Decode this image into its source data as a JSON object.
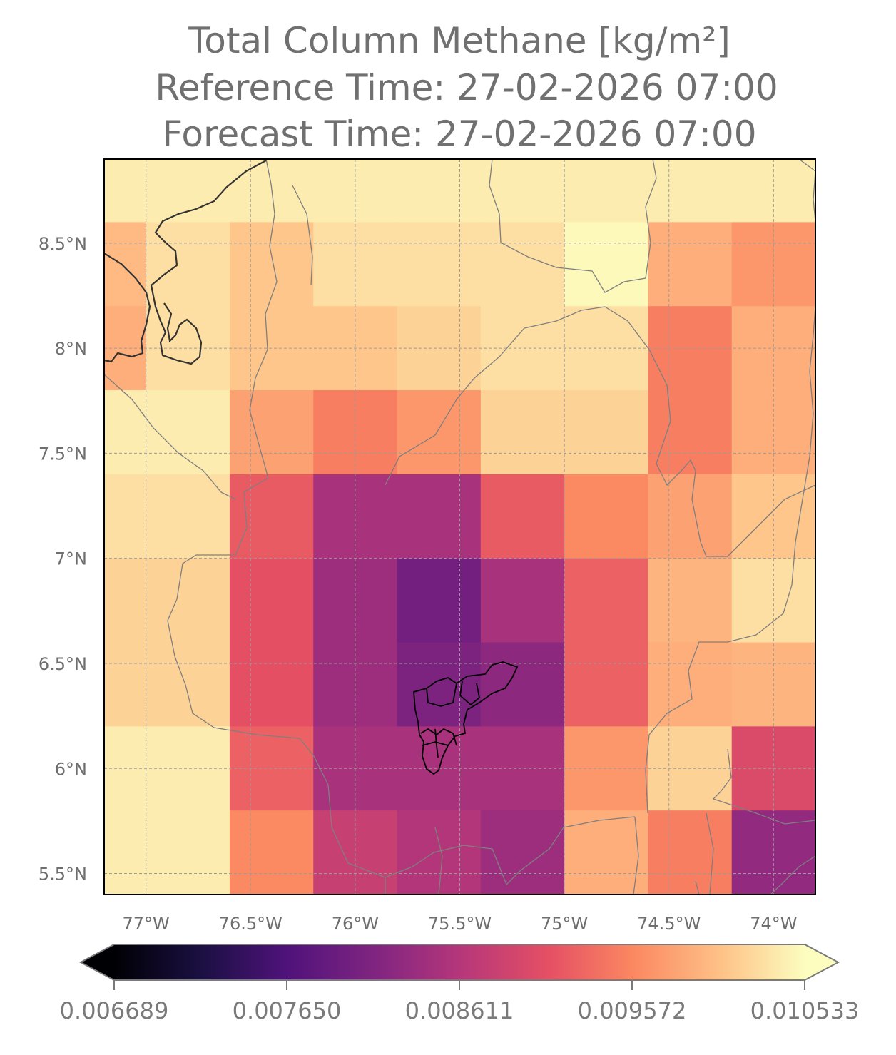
{
  "title": {
    "line1": "Total Column Methane [kg/m²]",
    "line2": "Reference Time: 27-02-2026 07:00",
    "line3": "Forecast Time: 27-02-2026 07:00"
  },
  "map": {
    "lon_range": [
      -77.2,
      -73.8
    ],
    "lat_range": [
      5.4,
      8.9
    ],
    "lon_ticks": [
      -77,
      -76.5,
      -76,
      -75.5,
      -75,
      -74.5,
      -74
    ],
    "lat_ticks": [
      5.5,
      6,
      6.5,
      7,
      7.5,
      8,
      8.5
    ],
    "lon_tick_labels": [
      "77°W",
      "76.5°W",
      "76°W",
      "75.5°W",
      "75°W",
      "74.5°W",
      "74°W"
    ],
    "lat_tick_labels": [
      "5.5°N",
      "6°N",
      "6.5°N",
      "7°N",
      "7.5°N",
      "8°N",
      "8.5°N"
    ],
    "gridlines": true,
    "cell_lon_edges": [
      -77.2,
      -77.0,
      -76.6,
      -76.2,
      -75.8,
      -75.4,
      -75.0,
      -74.6,
      -74.2,
      -73.8
    ],
    "cell_lat_edges": [
      8.9,
      8.6,
      8.2,
      7.8,
      7.4,
      7.0,
      6.6,
      6.2,
      5.8,
      5.4
    ],
    "colormap": "magma",
    "cell_values": [
      [
        0.0104,
        0.0104,
        0.0104,
        0.0104,
        0.0104,
        0.0104,
        0.0104,
        0.0104,
        0.0104
      ],
      [
        0.01,
        0.0103,
        0.0101,
        0.0103,
        0.0103,
        0.0103,
        0.0105,
        0.0099,
        0.0097
      ],
      [
        0.0099,
        0.0103,
        0.0101,
        0.0101,
        0.0102,
        0.0103,
        0.0103,
        0.0095,
        0.0099
      ],
      [
        0.0104,
        0.0104,
        0.0098,
        0.0095,
        0.0097,
        0.0102,
        0.0102,
        0.0095,
        0.0099
      ],
      [
        0.0103,
        0.0103,
        0.0092,
        0.0085,
        0.0085,
        0.0092,
        0.0096,
        0.0098,
        0.0101
      ],
      [
        0.0102,
        0.0102,
        0.0091,
        0.0084,
        0.008,
        0.0085,
        0.00925,
        0.00995,
        0.0103
      ],
      [
        0.0102,
        0.0102,
        0.0091,
        0.0084,
        0.0081,
        0.00825,
        0.00925,
        0.0099,
        0.00995
      ],
      [
        0.0104,
        0.0104,
        0.00925,
        0.0085,
        0.0085,
        0.0085,
        0.0097,
        0.0102,
        0.009
      ],
      [
        0.0104,
        0.0104,
        0.0096,
        0.0088,
        0.0086,
        0.0084,
        0.0099,
        0.0095,
        0.0083
      ]
    ],
    "colors": {
      "frame": "#000000",
      "grid": "#9b9b9b",
      "admin_borders": "#7f7f7f",
      "coastline": "#333333",
      "highlight_region": "#000000"
    }
  },
  "colorbar": {
    "min": 0.006689,
    "max": 0.010533,
    "ticks": [
      0.006689,
      0.00765,
      0.008611,
      0.009572,
      0.010533
    ],
    "tick_labels": [
      "0.006689",
      "0.007650",
      "0.008611",
      "0.009572",
      "0.010533"
    ],
    "extend": "both"
  }
}
